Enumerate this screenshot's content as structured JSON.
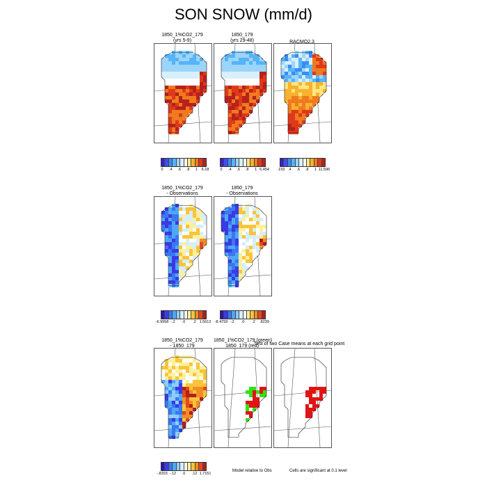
{
  "title": "SON SNOW (mm/d)",
  "row1": {
    "panels": [
      {
        "title1": "1850_1%CO2_179",
        "title2": "(yrs 5-9)"
      },
      {
        "title1": "1850_179",
        "title2": "(yrs 29-48)"
      },
      {
        "title1": "RACMO2.3",
        "title2": ""
      }
    ],
    "colorbars": [
      {
        "labels": [
          "0",
          ".4",
          ".6",
          ".8",
          "1",
          "6.18"
        ]
      },
      {
        "labels": [
          "0",
          ".4",
          ".6",
          ".8",
          "1",
          "6.454"
        ]
      },
      {
        "labels": [
          ".193",
          ".4",
          ".6",
          ".8",
          "1",
          "11.596"
        ]
      }
    ]
  },
  "row2": {
    "panels": [
      {
        "title1": "1850_1%CO2_179",
        "title2": "- Observations"
      },
      {
        "title1": "1850_179",
        "title2": "- Observations"
      }
    ],
    "colorbars": [
      {
        "labels": [
          "-6.9958",
          "-.2",
          ".0",
          ".2",
          "1.5612"
        ]
      },
      {
        "labels": [
          "-8.4759",
          "-.2",
          ".0",
          ".2",
          ".8239"
        ]
      }
    ]
  },
  "row3": {
    "panels": [
      {
        "title1": "1850_1%CO2_179",
        "title2": "- 1850_179"
      },
      {
        "title1": "1850_1%CO2_179 (green)",
        "title2": "1850_179 (red)"
      },
      {
        "title1": "",
        "title2": ""
      }
    ],
    "overlay_title": "Test of two Case means at each grid point",
    "colorbar": {
      "labels": [
        "-.8203",
        "-.12",
        ".0",
        ".12",
        "1.7151"
      ]
    },
    "notes": [
      "Model relative to Obs",
      "Cells are significant at 0.1 level"
    ]
  },
  "colors": {
    "snow_scale": [
      "#3a1fd0",
      "#3d4ff0",
      "#3a8cf5",
      "#56b4f7",
      "#9bd5fa",
      "#d8effc",
      "#ffffff",
      "#ffe680",
      "#f7b22e",
      "#f07a1f",
      "#de3a1a",
      "#b7211c"
    ],
    "diff_scale": [
      "#2a18b5",
      "#3a3ae6",
      "#3a78f2",
      "#4ea8f6",
      "#8fcdf9",
      "#d6eefc",
      "#ffffff",
      "#fff09a",
      "#f9c43b",
      "#f48c24",
      "#e04a1c",
      "#b21f1d"
    ],
    "sig_red": "#e11414",
    "sig_green": "#2fe314"
  }
}
